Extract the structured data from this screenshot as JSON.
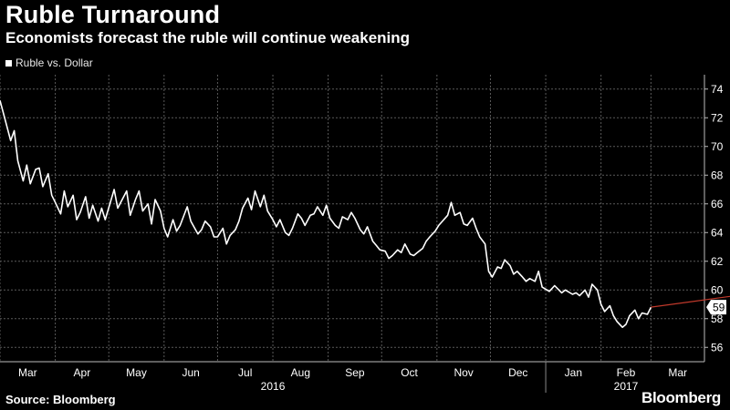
{
  "header": {
    "title": "Ruble Turnaround",
    "subtitle": "Economists forecast the ruble will continue weakening"
  },
  "legend": {
    "label": "Ruble vs. Dollar"
  },
  "footer": {
    "source": "Source: Bloomberg",
    "brand": "Bloomberg"
  },
  "colors": {
    "background": "#000000",
    "line": "#ffffff",
    "forecast": "#c0392b",
    "grid": "#5a5a5a"
  },
  "chart_data": {
    "type": "line",
    "title": "Ruble Turnaround",
    "subtitle": "Economists forecast the ruble will continue weakening",
    "y_axis_side": "right",
    "ylim": [
      55,
      75
    ],
    "y_ticks": [
      56,
      58,
      60,
      62,
      64,
      66,
      68,
      70,
      72,
      74
    ],
    "x_range": [
      "2016-03-01",
      "2017-03-31"
    ],
    "x_tick_labels": [
      "Mar",
      "Apr",
      "May",
      "Jun",
      "Jul",
      "Aug",
      "Sep",
      "Oct",
      "Nov",
      "Dec",
      "Jan",
      "Feb",
      "Mar"
    ],
    "x_tick_dates": [
      "2016-03-01",
      "2016-04-01",
      "2016-05-01",
      "2016-06-01",
      "2016-07-01",
      "2016-08-01",
      "2016-09-01",
      "2016-10-01",
      "2016-11-01",
      "2016-12-01",
      "2017-01-01",
      "2017-02-01",
      "2017-03-01"
    ],
    "year_labels": [
      {
        "label": "2016",
        "date": "2016-08-01"
      },
      {
        "label": "2017",
        "date": "2017-02-15"
      }
    ],
    "grid": true,
    "legend_position": "top-left",
    "last_value_label": "59",
    "series": [
      {
        "name": "Ruble vs. Dollar",
        "x": [
          "2016-03-01",
          "2016-03-04",
          "2016-03-07",
          "2016-03-09",
          "2016-03-11",
          "2016-03-14",
          "2016-03-16",
          "2016-03-18",
          "2016-03-21",
          "2016-03-23",
          "2016-03-25",
          "2016-03-28",
          "2016-03-30",
          "2016-04-01",
          "2016-04-04",
          "2016-04-06",
          "2016-04-08",
          "2016-04-11",
          "2016-04-13",
          "2016-04-15",
          "2016-04-18",
          "2016-04-20",
          "2016-04-22",
          "2016-04-25",
          "2016-04-27",
          "2016-04-29",
          "2016-05-04",
          "2016-05-06",
          "2016-05-11",
          "2016-05-13",
          "2016-05-16",
          "2016-05-18",
          "2016-05-20",
          "2016-05-23",
          "2016-05-25",
          "2016-05-27",
          "2016-05-30",
          "2016-06-01",
          "2016-06-03",
          "2016-06-06",
          "2016-06-08",
          "2016-06-10",
          "2016-06-14",
          "2016-06-16",
          "2016-06-20",
          "2016-06-22",
          "2016-06-24",
          "2016-06-27",
          "2016-06-29",
          "2016-07-01",
          "2016-07-04",
          "2016-07-06",
          "2016-07-08",
          "2016-07-11",
          "2016-07-13",
          "2016-07-15",
          "2016-07-18",
          "2016-07-20",
          "2016-07-22",
          "2016-07-25",
          "2016-07-27",
          "2016-07-29",
          "2016-08-01",
          "2016-08-03",
          "2016-08-05",
          "2016-08-08",
          "2016-08-10",
          "2016-08-12",
          "2016-08-15",
          "2016-08-17",
          "2016-08-19",
          "2016-08-22",
          "2016-08-24",
          "2016-08-26",
          "2016-08-29",
          "2016-08-31",
          "2016-09-02",
          "2016-09-05",
          "2016-09-07",
          "2016-09-09",
          "2016-09-12",
          "2016-09-14",
          "2016-09-16",
          "2016-09-19",
          "2016-09-21",
          "2016-09-23",
          "2016-09-26",
          "2016-09-28",
          "2016-09-30",
          "2016-10-03",
          "2016-10-05",
          "2016-10-07",
          "2016-10-10",
          "2016-10-12",
          "2016-10-14",
          "2016-10-17",
          "2016-10-19",
          "2016-10-21",
          "2016-10-24",
          "2016-10-26",
          "2016-10-28",
          "2016-10-31",
          "2016-11-02",
          "2016-11-07",
          "2016-11-09",
          "2016-11-11",
          "2016-11-14",
          "2016-11-16",
          "2016-11-18",
          "2016-11-21",
          "2016-11-23",
          "2016-11-25",
          "2016-11-28",
          "2016-11-30",
          "2016-12-02",
          "2016-12-05",
          "2016-12-07",
          "2016-12-09",
          "2016-12-12",
          "2016-12-14",
          "2016-12-16",
          "2016-12-19",
          "2016-12-21",
          "2016-12-23",
          "2016-12-26",
          "2016-12-28",
          "2016-12-30",
          "2017-01-03",
          "2017-01-06",
          "2017-01-10",
          "2017-01-12",
          "2017-01-16",
          "2017-01-18",
          "2017-01-20",
          "2017-01-23",
          "2017-01-25",
          "2017-01-27",
          "2017-01-30",
          "2017-02-01",
          "2017-02-03",
          "2017-02-06",
          "2017-02-08",
          "2017-02-10",
          "2017-02-13",
          "2017-02-15",
          "2017-02-17",
          "2017-02-20",
          "2017-02-22",
          "2017-02-24",
          "2017-02-27",
          "2017-03-01"
        ],
        "values": [
          73.2,
          71.8,
          70.4,
          71.1,
          69.0,
          67.6,
          68.7,
          67.4,
          68.4,
          68.5,
          67.2,
          68.1,
          66.6,
          66.1,
          65.3,
          66.9,
          65.8,
          66.6,
          64.9,
          65.4,
          66.5,
          65.0,
          65.9,
          64.8,
          65.7,
          64.9,
          67.0,
          65.7,
          66.9,
          65.2,
          66.3,
          66.9,
          65.5,
          66.0,
          64.6,
          66.3,
          65.5,
          64.3,
          63.7,
          64.9,
          64.1,
          64.5,
          65.8,
          64.8,
          63.9,
          64.2,
          64.8,
          64.4,
          63.7,
          63.7,
          64.3,
          63.2,
          63.8,
          64.2,
          64.8,
          65.7,
          66.4,
          65.6,
          66.9,
          65.8,
          66.6,
          65.5,
          64.9,
          64.4,
          64.9,
          64.0,
          63.8,
          64.3,
          65.3,
          65.0,
          64.5,
          65.2,
          65.3,
          65.8,
          65.2,
          65.9,
          65.0,
          64.5,
          64.3,
          65.1,
          64.9,
          65.4,
          65.0,
          64.2,
          63.9,
          64.4,
          63.4,
          63.1,
          62.8,
          62.7,
          62.2,
          62.4,
          62.8,
          62.6,
          63.2,
          62.5,
          62.4,
          62.6,
          62.9,
          63.4,
          63.7,
          64.1,
          64.5,
          65.2,
          66.1,
          65.2,
          65.4,
          64.6,
          64.5,
          65.0,
          64.3,
          63.7,
          63.2,
          61.3,
          60.9,
          61.6,
          61.5,
          62.1,
          61.7,
          61.1,
          61.3,
          60.9,
          60.6,
          60.8,
          60.6,
          61.3,
          60.2,
          59.9,
          60.3,
          59.8,
          60.0,
          59.7,
          59.8,
          59.6,
          60.0,
          59.5,
          60.4,
          60.0,
          59.0,
          58.5,
          58.9,
          58.2,
          57.8,
          57.4,
          57.6,
          58.2,
          58.6,
          58.0,
          58.4,
          58.3,
          58.8
        ]
      }
    ],
    "forecast": {
      "from": {
        "x": "2017-03-01",
        "y": 58.8
      },
      "to": {
        "x": "2017-06-15",
        "y": 60.6
      }
    }
  }
}
